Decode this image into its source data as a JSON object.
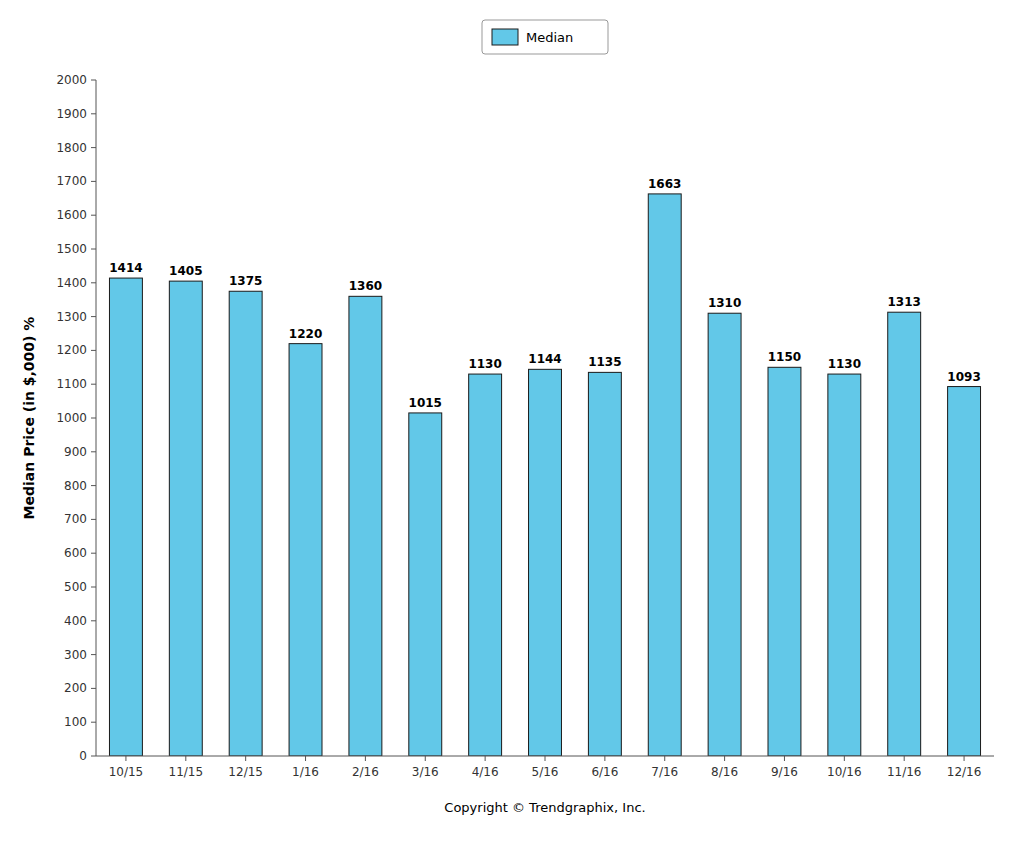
{
  "chart_data": {
    "type": "bar",
    "categories": [
      "10/15",
      "11/15",
      "12/15",
      "1/16",
      "2/16",
      "3/16",
      "4/16",
      "5/16",
      "6/16",
      "7/16",
      "8/16",
      "9/16",
      "10/16",
      "11/16",
      "12/16"
    ],
    "series": [
      {
        "name": "Median",
        "color": "#62C8E8",
        "values": [
          1414,
          1405,
          1375,
          1220,
          1360,
          1015,
          1130,
          1144,
          1135,
          1663,
          1310,
          1150,
          1130,
          1313,
          1093
        ]
      }
    ],
    "ylabel": "Median Price (in $,000) %",
    "xlabel": "Copyright © Trendgraphix, Inc.",
    "ylim": [
      0,
      2000
    ],
    "yticks": [
      0,
      100,
      200,
      300,
      400,
      500,
      600,
      700,
      800,
      900,
      1000,
      1100,
      1200,
      1300,
      1400,
      1500,
      1600,
      1700,
      1800,
      1900,
      2000
    ],
    "grid": false,
    "legend": "top",
    "data_labels": true
  }
}
